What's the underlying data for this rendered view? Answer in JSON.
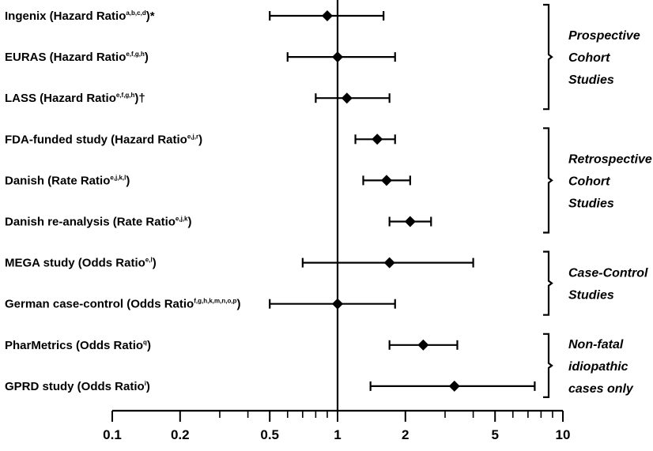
{
  "chart_data": {
    "type": "scatter",
    "title": "",
    "xlabel": "",
    "ylabel": "",
    "x_scale": "log",
    "xlim": [
      0.1,
      10
    ],
    "x_ticks": [
      0.1,
      0.2,
      0.5,
      1,
      2,
      5,
      10
    ],
    "x_tick_labels": [
      "0.1",
      "0.2",
      "0.5",
      "1",
      "2",
      "5",
      "10"
    ],
    "reference_line": 1,
    "rows": [
      {
        "name": "Ingenix (Hazard Ratio",
        "sup": "a,b,c,d",
        "suffix": ")*",
        "estimate": 0.9,
        "lower": 0.5,
        "upper": 1.6
      },
      {
        "name": "EURAS (Hazard Ratio",
        "sup": "e,f,g,h",
        "suffix": ")",
        "estimate": 1.0,
        "lower": 0.6,
        "upper": 1.8
      },
      {
        "name": "LASS (Hazard Ratio",
        "sup": "e,f,g,h",
        "suffix": ")†",
        "estimate": 1.1,
        "lower": 0.8,
        "upper": 1.7
      },
      {
        "name": "FDA-funded study (Hazard Ratio",
        "sup": "e,j,r",
        "suffix": ")",
        "estimate": 1.5,
        "lower": 1.2,
        "upper": 1.8
      },
      {
        "name": "Danish (Rate Ratio",
        "sup": "e,j,k,l",
        "suffix": ")",
        "estimate": 1.65,
        "lower": 1.3,
        "upper": 2.1
      },
      {
        "name": "Danish re-analysis (Rate Ratio",
        "sup": "e,j,k",
        "suffix": ")",
        "estimate": 2.1,
        "lower": 1.7,
        "upper": 2.6
      },
      {
        "name": "MEGA study (Odds Ratio",
        "sup": "e,l",
        "suffix": ")",
        "estimate": 1.7,
        "lower": 0.7,
        "upper": 4.0
      },
      {
        "name": "German case-control (Odds Ratio",
        "sup": "f,g,h,k,m,n,o,p",
        "suffix": ")",
        "estimate": 1.0,
        "lower": 0.5,
        "upper": 1.8
      },
      {
        "name": "PharMetrics (Odds Ratio",
        "sup": "q",
        "suffix": ")",
        "estimate": 2.4,
        "lower": 1.7,
        "upper": 3.4
      },
      {
        "name": "GPRD study (Odds Ratio",
        "sup": "i",
        "suffix": ")",
        "estimate": 3.3,
        "lower": 1.4,
        "upper": 7.5
      }
    ],
    "groups": [
      {
        "lines": [
          "Prospective",
          "Cohort",
          "Studies"
        ],
        "first_row": 0,
        "last_row": 2
      },
      {
        "lines": [
          "Retrospective",
          "Cohort",
          "Studies"
        ],
        "first_row": 3,
        "last_row": 5
      },
      {
        "lines": [
          "Case-Control",
          "Studies"
        ],
        "first_row": 6,
        "last_row": 7
      },
      {
        "lines": [
          "Non-fatal",
          "idiopathic",
          "cases only"
        ],
        "first_row": 8,
        "last_row": 9
      }
    ]
  }
}
